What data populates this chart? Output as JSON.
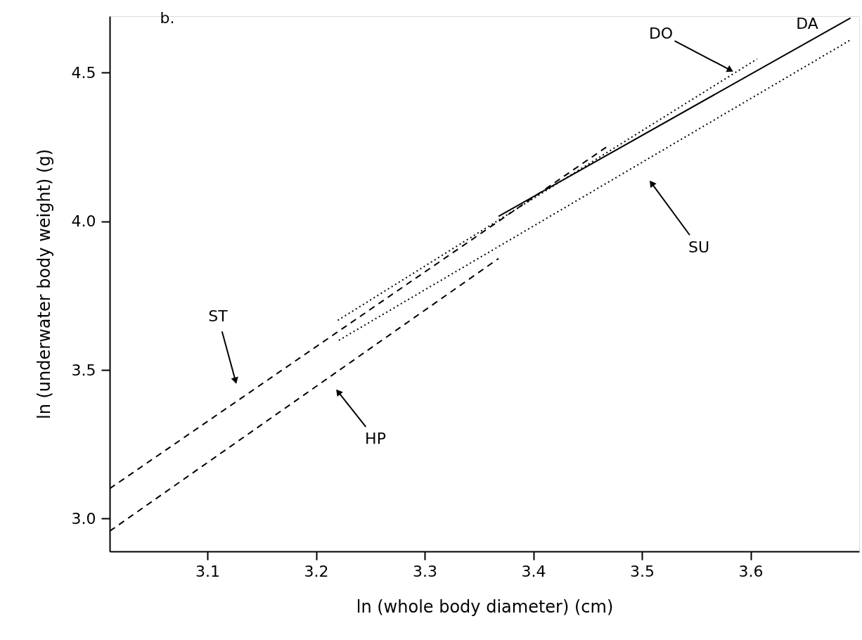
{
  "chart_data": {
    "type": "line",
    "xlabel": "ln (whole body diameter) (cm)",
    "ylabel": "ln (underwater body weight) (g)",
    "xlim": [
      3.01,
      3.7
    ],
    "ylim": [
      2.89,
      4.69
    ],
    "xticks": [
      3.1,
      3.2,
      3.3,
      3.4,
      3.5,
      3.6
    ],
    "yticks": [
      {
        "value": 3,
        "label": "3.0"
      },
      3.5,
      {
        "value": 4,
        "label": "4.0"
      },
      4.5
    ],
    "grid": false,
    "marker": "none",
    "series": [
      {
        "color": "#000000",
        "line_style": "solid",
        "x": [
          3.368,
          3.692
        ],
        "values": [
          4.017,
          4.684
        ]
      },
      {
        "color": "#000000",
        "line_style": "dotted",
        "x": [
          3.22,
          3.606
        ],
        "values": [
          3.667,
          4.546
        ]
      },
      {
        "color": "#000000",
        "line_style": "dotted",
        "x": [
          3.221,
          3.692
        ],
        "values": [
          3.6,
          4.61
        ]
      },
      {
        "color": "#000000",
        "line_style": "dashed",
        "x": [
          3.01,
          3.467
        ],
        "values": [
          3.101,
          4.249
        ]
      },
      {
        "color": "#000000",
        "line_style": "dashed",
        "x": [
          3.01,
          3.368
        ],
        "values": [
          2.958,
          3.875
        ]
      }
    ],
    "annotations": [
      "b.",
      "ST",
      "HP",
      {
        "text": "DO",
        "x": 3.586,
        "y": 4.5
      },
      "SU",
      "DA"
    ]
  }
}
